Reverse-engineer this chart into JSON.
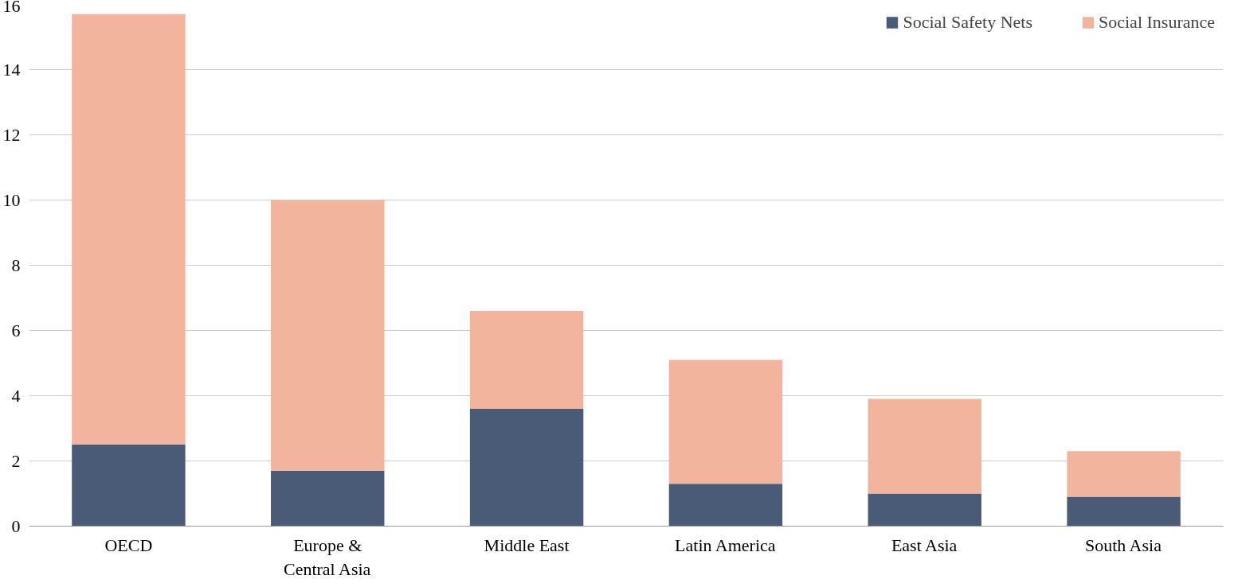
{
  "chart_data": {
    "type": "bar",
    "stacked": true,
    "categories": [
      "OECD",
      "Europe & Central Asia",
      "Middle East",
      "Latin America",
      "East Asia",
      "South Asia"
    ],
    "series": [
      {
        "name": "Social Safety Nets",
        "color": "#4a5b78",
        "values": [
          2.5,
          1.7,
          3.6,
          1.3,
          1.0,
          0.9
        ]
      },
      {
        "name": "Social Insurance",
        "color": "#f2b49c",
        "values": [
          13.2,
          8.3,
          3.0,
          3.8,
          2.9,
          1.4
        ]
      }
    ],
    "ylim": [
      0,
      16
    ],
    "yticks": [
      0,
      2,
      4,
      6,
      8,
      10,
      12,
      14,
      16
    ],
    "grid": "y",
    "legend": "top right"
  }
}
